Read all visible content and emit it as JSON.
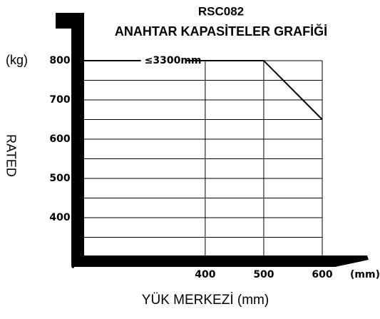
{
  "chart_data": {
    "type": "line",
    "title": "RSC082",
    "subtitle": "ANAHTAR KAPASİTELER GRAFİĞİ",
    "y_axis_label": "RATED",
    "y_unit": "(kg)",
    "x_unit": "(mm)",
    "x_axis_label": "YÜK MERKEZİ (mm)",
    "annotation": "≤3300mm",
    "x": [
      193,
      500,
      600
    ],
    "values": [
      800,
      800,
      650
    ],
    "color": "#000000",
    "xlim": [
      193,
      600
    ],
    "xticks": [
      400,
      500,
      600
    ],
    "ylim": [
      300,
      800
    ],
    "yticks": [
      400,
      500,
      600,
      700,
      800
    ],
    "y_minor_ticks": [
      350,
      450,
      550,
      650,
      750
    ],
    "grid": true
  }
}
